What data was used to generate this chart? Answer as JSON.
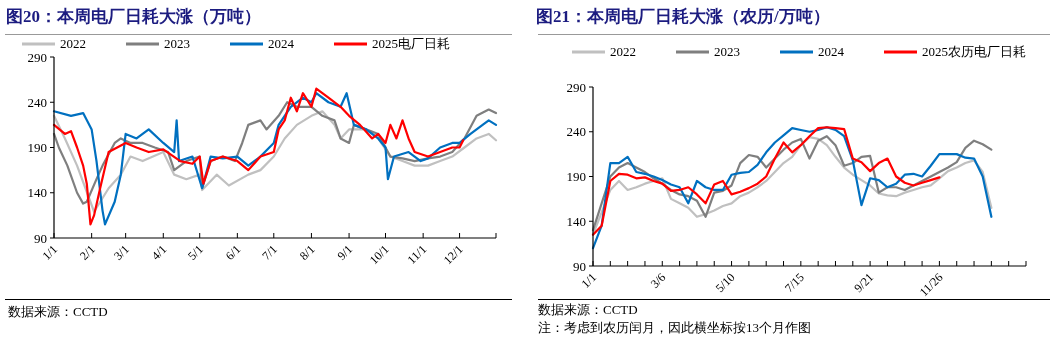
{
  "chart_data": [
    {
      "type": "line",
      "title": "图20：本周电厂日耗大涨（万吨）",
      "legend": "top",
      "xlim": [
        "--01-01",
        "--12-31"
      ],
      "ylim": [
        90,
        290
      ],
      "yticks": [
        90,
        140,
        190,
        240,
        290
      ],
      "xticks": [
        {
          "value": "--01-01",
          "label": "1/1"
        },
        {
          "value": "--02-01",
          "label": "2/1"
        },
        {
          "value": "--03-01",
          "label": "3/1"
        },
        {
          "value": "--04-01",
          "label": "4/1"
        },
        {
          "value": "--05-01",
          "label": "5/1"
        },
        {
          "value": "--06-01",
          "label": "6/1"
        },
        {
          "value": "--07-01",
          "label": "7/1"
        },
        {
          "value": "--08-01",
          "label": "8/1"
        },
        {
          "value": "--09-01",
          "label": "9/1"
        },
        {
          "value": "--10-01",
          "label": "10/1"
        },
        {
          "value": "--11-01",
          "label": "11/1"
        },
        {
          "value": "--12-01",
          "label": "12/1"
        },
        {
          "value": "--12-31",
          "label": null
        }
      ],
      "annotations": [
        "数据来源：CCTD"
      ],
      "series": [
        {
          "name": "2022",
          "color": "#c0c0c0",
          "x": [
            "--01-01",
            "--01-10",
            "--01-20",
            "--02-03",
            "--02-15",
            "--02-25",
            "--03-05",
            "--03-15",
            "--04-01",
            "--04-10",
            "--04-20",
            "--05-01",
            "--05-03",
            "--05-15",
            "--05-25",
            "--06-10",
            "--06-20",
            "--07-01",
            "--07-10",
            "--07-20",
            "--08-01",
            "--08-10",
            "--08-20",
            "--08-25",
            "--09-01",
            "--09-15",
            "--09-25",
            "--10-05",
            "--10-15",
            "--10-25",
            "--11-05",
            "--11-15",
            "--11-25",
            "--12-05",
            "--12-15",
            "--12-25",
            "--12-31"
          ],
          "values": [
            225,
            200,
            170,
            119,
            145,
            160,
            180,
            175,
            185,
            160,
            155,
            160,
            143,
            160,
            148,
            160,
            165,
            180,
            200,
            215,
            225,
            230,
            215,
            200,
            210,
            210,
            200,
            180,
            175,
            170,
            170,
            175,
            180,
            190,
            200,
            205,
            198
          ]
        },
        {
          "name": "2023",
          "color": "#7f7f7f",
          "x": [
            "--01-01",
            "--01-05",
            "--01-12",
            "--01-20",
            "--01-25",
            "--01-28",
            "--02-05",
            "--02-10",
            "--02-20",
            "--02-25",
            "--03-05",
            "--03-15",
            "--03-25",
            "--04-05",
            "--04-10",
            "--04-20",
            "--05-01",
            "--05-03",
            "--05-10",
            "--05-20",
            "--05-30",
            "--06-05",
            "--06-10",
            "--06-20",
            "--06-25",
            "--07-05",
            "--07-12",
            "--07-20",
            "--08-01",
            "--08-10",
            "--08-20",
            "--08-25",
            "--09-01",
            "--09-05",
            "--09-15",
            "--09-25",
            "--10-05",
            "--10-15",
            "--10-25",
            "--11-05",
            "--11-15",
            "--11-25",
            "--12-05",
            "--12-15",
            "--12-25",
            "--12-31"
          ],
          "values": [
            205,
            190,
            170,
            140,
            128,
            130,
            155,
            170,
            195,
            200,
            195,
            195,
            190,
            185,
            165,
            175,
            180,
            145,
            175,
            180,
            175,
            195,
            215,
            220,
            210,
            225,
            240,
            235,
            235,
            225,
            220,
            200,
            195,
            215,
            210,
            205,
            180,
            178,
            175,
            178,
            180,
            185,
            200,
            225,
            232,
            228
          ]
        },
        {
          "name": "2024",
          "color": "#0070c0",
          "x": [
            "--01-01",
            "--01-15",
            "--01-25",
            "--02-01",
            "--02-05",
            "--02-10",
            "--02-12",
            "--02-20",
            "--02-25",
            "--03-01",
            "--03-10",
            "--03-20",
            "--04-01",
            "--04-10",
            "--04-12",
            "--04-14",
            "--04-25",
            "--05-03",
            "--05-10",
            "--05-20",
            "--06-01",
            "--06-10",
            "--06-20",
            "--07-01",
            "--07-05",
            "--07-15",
            "--07-25",
            "--08-01",
            "--08-05",
            "--08-15",
            "--08-25",
            "--08-30",
            "--09-05",
            "--09-15",
            "--09-25",
            "--10-01",
            "--10-03",
            "--10-08",
            "--10-20",
            "--10-30",
            "--11-05",
            "--11-15",
            "--11-25",
            "--12-01",
            "--12-10",
            "--12-20",
            "--12-25",
            "--12-31"
          ],
          "values": [
            230,
            225,
            228,
            210,
            175,
            120,
            105,
            130,
            160,
            205,
            200,
            210,
            195,
            185,
            220,
            175,
            180,
            145,
            180,
            178,
            180,
            170,
            180,
            195,
            215,
            235,
            245,
            240,
            250,
            240,
            235,
            250,
            215,
            210,
            200,
            190,
            155,
            180,
            185,
            175,
            178,
            190,
            195,
            195,
            205,
            215,
            220,
            215
          ]
        },
        {
          "name": "2025电厂日耗",
          "color": "#ff0000",
          "x": [
            "--01-01",
            "--01-10",
            "--01-15",
            "--01-20",
            "--01-25",
            "--01-28",
            "--01-31",
            "--02-03",
            "--02-08",
            "--02-15",
            "--02-22",
            "--03-01",
            "--03-10",
            "--03-20",
            "--04-01",
            "--04-15",
            "--04-25",
            "--05-01",
            "--05-04",
            "--05-10",
            "--05-20",
            "--06-01",
            "--06-10",
            "--06-20",
            "--07-01",
            "--07-05",
            "--07-10",
            "--07-15",
            "--07-20",
            "--07-25",
            "--08-01",
            "--08-05",
            "--08-15",
            "--08-25",
            "--09-01",
            "--09-10",
            "--09-20",
            "--09-25",
            "--10-01",
            "--10-05",
            "--10-10",
            "--10-15",
            "--10-20",
            "--10-25",
            "--11-05",
            "--11-15",
            "--11-25",
            "--12-01",
            "--12-04"
          ],
          "values": [
            215,
            205,
            208,
            190,
            170,
            150,
            105,
            115,
            145,
            185,
            190,
            195,
            190,
            185,
            188,
            175,
            172,
            180,
            150,
            175,
            180,
            175,
            165,
            180,
            185,
            210,
            220,
            245,
            230,
            250,
            235,
            255,
            245,
            235,
            225,
            215,
            200,
            205,
            195,
            215,
            200,
            220,
            200,
            185,
            180,
            185,
            190,
            190,
            198
          ]
        }
      ]
    },
    {
      "type": "line",
      "title": "图21：本周电厂日耗大涨（农历/万吨）",
      "legend": "top",
      "ylim": [
        90,
        290
      ],
      "yticks": [
        90,
        140,
        190,
        240,
        290
      ],
      "categories": [
        "1/1",
        null,
        null,
        null,
        null,
        null,
        null,
        null,
        "3/6",
        null,
        null,
        null,
        null,
        null,
        null,
        null,
        "5/10",
        null,
        null,
        null,
        null,
        null,
        null,
        null,
        "7/15",
        null,
        null,
        null,
        null,
        null,
        null,
        null,
        "9/21",
        null,
        null,
        null,
        null,
        null,
        null,
        null,
        "11/26",
        null,
        null,
        null,
        null,
        null,
        null,
        null,
        null,
        null,
        null
      ],
      "annotations": [
        "数据来源：CCTD",
        "注：考虑到农历闰月，因此横坐标按13个月作图"
      ],
      "series": [
        {
          "name": "2022",
          "color": "#c0c0c0",
          "values": [
            125,
            150,
            175,
            185,
            175,
            178,
            182,
            185,
            188,
            165,
            160,
            155,
            145,
            148,
            152,
            157,
            160,
            168,
            172,
            178,
            185,
            195,
            205,
            212,
            225,
            234,
            232,
            225,
            212,
            200,
            192,
            186,
            180,
            171,
            169,
            168,
            172,
            175,
            178,
            180,
            188,
            196,
            200,
            205,
            208,
            195,
            155,
            null,
            null,
            null,
            null
          ]
        },
        {
          "name": "2023",
          "color": "#7f7f7f",
          "values": [
            130,
            160,
            190,
            200,
            205,
            200,
            195,
            188,
            182,
            175,
            170,
            168,
            163,
            145,
            172,
            174,
            180,
            205,
            214,
            212,
            200,
            210,
            220,
            228,
            232,
            210,
            230,
            235,
            225,
            202,
            205,
            212,
            213,
            172,
            178,
            178,
            175,
            180,
            185,
            190,
            195,
            200,
            206,
            222,
            230,
            226,
            220,
            null,
            null,
            null,
            null
          ]
        },
        {
          "name": "2024",
          "color": "#0070c0",
          "values": [
            110,
            135,
            205,
            205,
            212,
            195,
            193,
            190,
            186,
            181,
            178,
            160,
            185,
            178,
            175,
            175,
            192,
            194,
            195,
            203,
            217,
            228,
            236,
            244,
            242,
            240,
            242,
            245,
            242,
            235,
            208,
            158,
            188,
            186,
            178,
            182,
            192,
            193,
            190,
            202,
            215,
            215,
            215,
            211,
            210,
            190,
            145,
            null,
            null,
            null,
            null
          ]
        },
        {
          "name": "2025农历电厂日耗",
          "color": "#ff0000",
          "values": [
            125,
            135,
            185,
            193,
            192,
            188,
            189,
            185,
            182,
            174,
            175,
            178,
            170,
            160,
            181,
            185,
            170,
            173,
            177,
            182,
            190,
            210,
            228,
            217,
            225,
            235,
            244,
            245,
            244,
            243,
            210,
            206,
            196,
            205,
            210,
            190,
            183,
            180,
            183,
            186,
            189,
            null,
            null,
            null,
            null,
            null,
            null,
            null,
            null,
            null,
            null
          ]
        }
      ]
    }
  ]
}
